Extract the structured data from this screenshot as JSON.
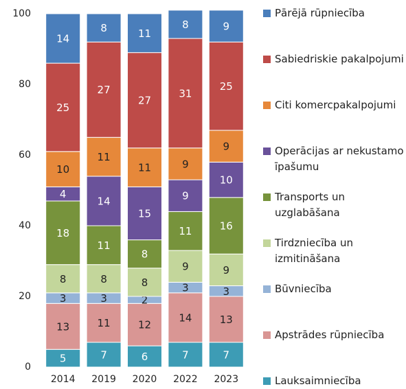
{
  "chart_data": {
    "type": "stacked_bar",
    "categories": [
      "2014",
      "2019",
      "2020",
      "2022",
      "2023"
    ],
    "series": [
      {
        "name": "Lauksaimniecība",
        "color": "#3d9cb5",
        "values": [
          5,
          7,
          6,
          7,
          7
        ]
      },
      {
        "name": "Apstrādes rūpniecība",
        "color": "#d99694",
        "values": [
          13,
          11,
          12,
          14,
          13
        ]
      },
      {
        "name": "Būvniecība",
        "color": "#95b3d7",
        "values": [
          3,
          3,
          2,
          3,
          3
        ]
      },
      {
        "name": "Tirdzniecība un izmitināšana",
        "color": "#c3d69b",
        "values": [
          8,
          8,
          8,
          9,
          9
        ]
      },
      {
        "name": "Transports un uzglabāšana",
        "color": "#77933c",
        "values": [
          18,
          11,
          8,
          11,
          16
        ]
      },
      {
        "name": "Operācijas ar nekustamo īpašumu",
        "color": "#6a529a",
        "values": [
          4,
          14,
          15,
          9,
          10
        ]
      },
      {
        "name": "Citi komercpakalpojumi",
        "color": "#e6883a",
        "values": [
          10,
          11,
          11,
          9,
          9
        ]
      },
      {
        "name": "Sabiedriskie pakalpojumi",
        "color": "#be4b48",
        "values": [
          25,
          27,
          27,
          31,
          25
        ]
      },
      {
        "name": "Pārējā rūpniecība",
        "color": "#4a7ebb",
        "values": [
          14,
          8,
          11,
          8,
          9
        ]
      }
    ],
    "ylim": [
      0,
      100
    ],
    "yticks": [
      0,
      20,
      40,
      60,
      80,
      100
    ],
    "grid": false,
    "legend": "right"
  }
}
